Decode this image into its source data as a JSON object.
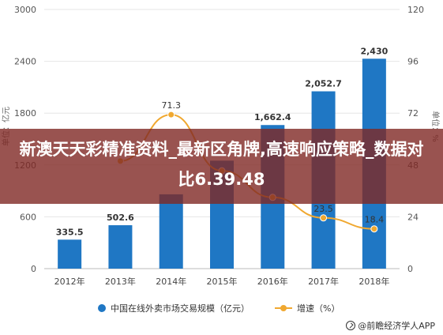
{
  "chart_data": {
    "type": "bar+line",
    "categories": [
      "2012年",
      "2013年",
      "2014年",
      "2015年",
      "2016年",
      "2017年",
      "2018年"
    ],
    "series": [
      {
        "name": "中国在线外卖市场交易规模（亿元）",
        "type": "bar",
        "axis": "left",
        "values": [
          335.5,
          502.6,
          860.5,
          1250.0,
          1662.4,
          2052.7,
          2430
        ],
        "labels": [
          "335.5",
          "502.6",
          "",
          "",
          "1,662.4",
          "2,052.7",
          "2,430"
        ],
        "color": "#1f77c4"
      },
      {
        "name": "增速（%）",
        "type": "line",
        "axis": "right",
        "values": [
          null,
          49.8,
          71.3,
          45.3,
          33.0,
          23.5,
          18.4
        ],
        "labels": [
          "",
          "",
          "71.3",
          "",
          "",
          "23.5",
          "18.4"
        ],
        "color": "#f0a830"
      }
    ],
    "y_left": {
      "label": "单位：亿元",
      "ticks": [
        0,
        600,
        1200,
        1800,
        2400,
        3000
      ],
      "range": [
        0,
        3000
      ]
    },
    "y_right": {
      "label": "单位：%",
      "ticks": [
        0,
        24,
        48,
        72,
        96,
        120
      ],
      "range": [
        0,
        120
      ]
    },
    "grid": true,
    "legend": "bottom"
  },
  "overlay": {
    "title": "新澳天天彩精准资料_最新区角牌,高速响应策略_数据对比6.39.48"
  },
  "source": {
    "text": "@前瞻经济学人APP"
  }
}
